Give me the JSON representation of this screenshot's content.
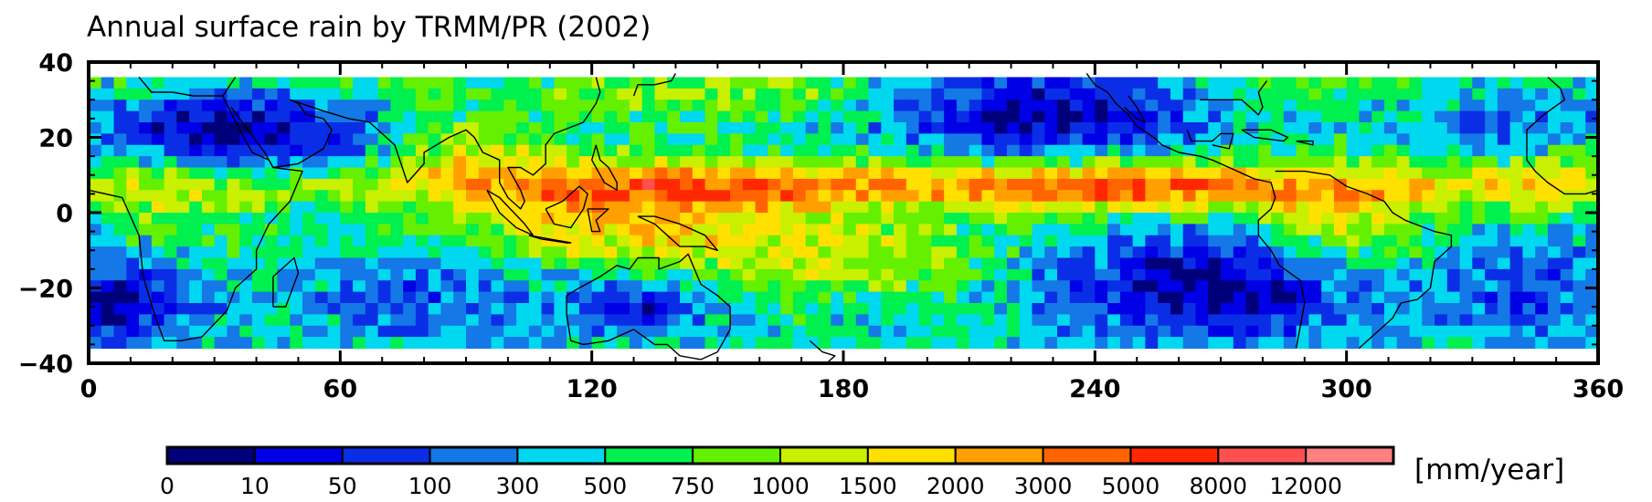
{
  "title": "Annual surface rain by TRMM/PR (2002)",
  "map": {
    "lon_range": [
      0,
      360
    ],
    "lat_range": [
      -40,
      40
    ],
    "data_lat_range": [
      -36,
      36
    ],
    "x_ticks": [
      "0",
      "60",
      "120",
      "180",
      "240",
      "300",
      "360"
    ],
    "y_ticks": [
      "40",
      "20",
      "0",
      "−20",
      "−40"
    ]
  },
  "colorbar": {
    "unit": "[mm/year]",
    "labels": [
      "0",
      "10",
      "50",
      "100",
      "300",
      "500",
      "750",
      "1000",
      "1500",
      "2000",
      "3000",
      "5000",
      "8000",
      "12000"
    ],
    "colors": [
      "#00007a",
      "#0000e6",
      "#0a2ee6",
      "#1478e6",
      "#00d8f0",
      "#00f050",
      "#64f000",
      "#c8f000",
      "#ffe000",
      "#ffa000",
      "#ff6400",
      "#ff2800",
      "#ff5050",
      "#ff8080"
    ]
  }
}
